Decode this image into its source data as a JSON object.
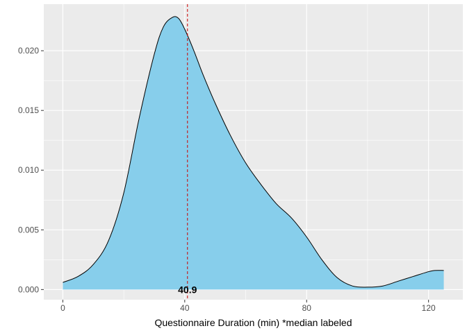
{
  "chart_data": {
    "type": "area",
    "title": "",
    "xlabel": "Questionnaire Duration (min)  *median labeled",
    "ylabel": "",
    "xlim": [
      -6.25,
      131.25
    ],
    "ylim": [
      -0.00085,
      0.0239
    ],
    "x_ticks": [
      0,
      40,
      80,
      120
    ],
    "x_tick_labels": [
      "0",
      "40",
      "80",
      "120"
    ],
    "y_ticks": [
      0.0,
      0.005,
      0.01,
      0.015,
      0.02
    ],
    "y_tick_labels": [
      "0.000",
      "0.005",
      "0.010",
      "0.015",
      "0.020"
    ],
    "grid": true,
    "fill_color": "#87CEEB",
    "line_color": "#000000",
    "panel_background": "#EBEBEB",
    "grid_color": "#FFFFFF",
    "median_line_color": "#CC0000",
    "x": [
      0,
      5,
      10,
      15,
      20,
      25,
      30,
      33,
      36,
      38,
      40,
      43,
      46,
      50,
      55,
      60,
      65,
      70,
      75,
      80,
      85,
      90,
      95,
      100,
      105,
      110,
      115,
      120,
      122,
      125
    ],
    "y": [
      0.0006,
      0.0011,
      0.0021,
      0.0041,
      0.0081,
      0.0143,
      0.0197,
      0.022,
      0.0228,
      0.0227,
      0.0218,
      0.02,
      0.018,
      0.0156,
      0.0129,
      0.0106,
      0.0088,
      0.0072,
      0.006,
      0.0044,
      0.0025,
      0.001,
      0.0003,
      0.0002,
      0.0003,
      0.0007,
      0.0011,
      0.0015,
      0.0016,
      0.0016
    ],
    "median": {
      "value": 40.9,
      "label": "40.9"
    }
  }
}
